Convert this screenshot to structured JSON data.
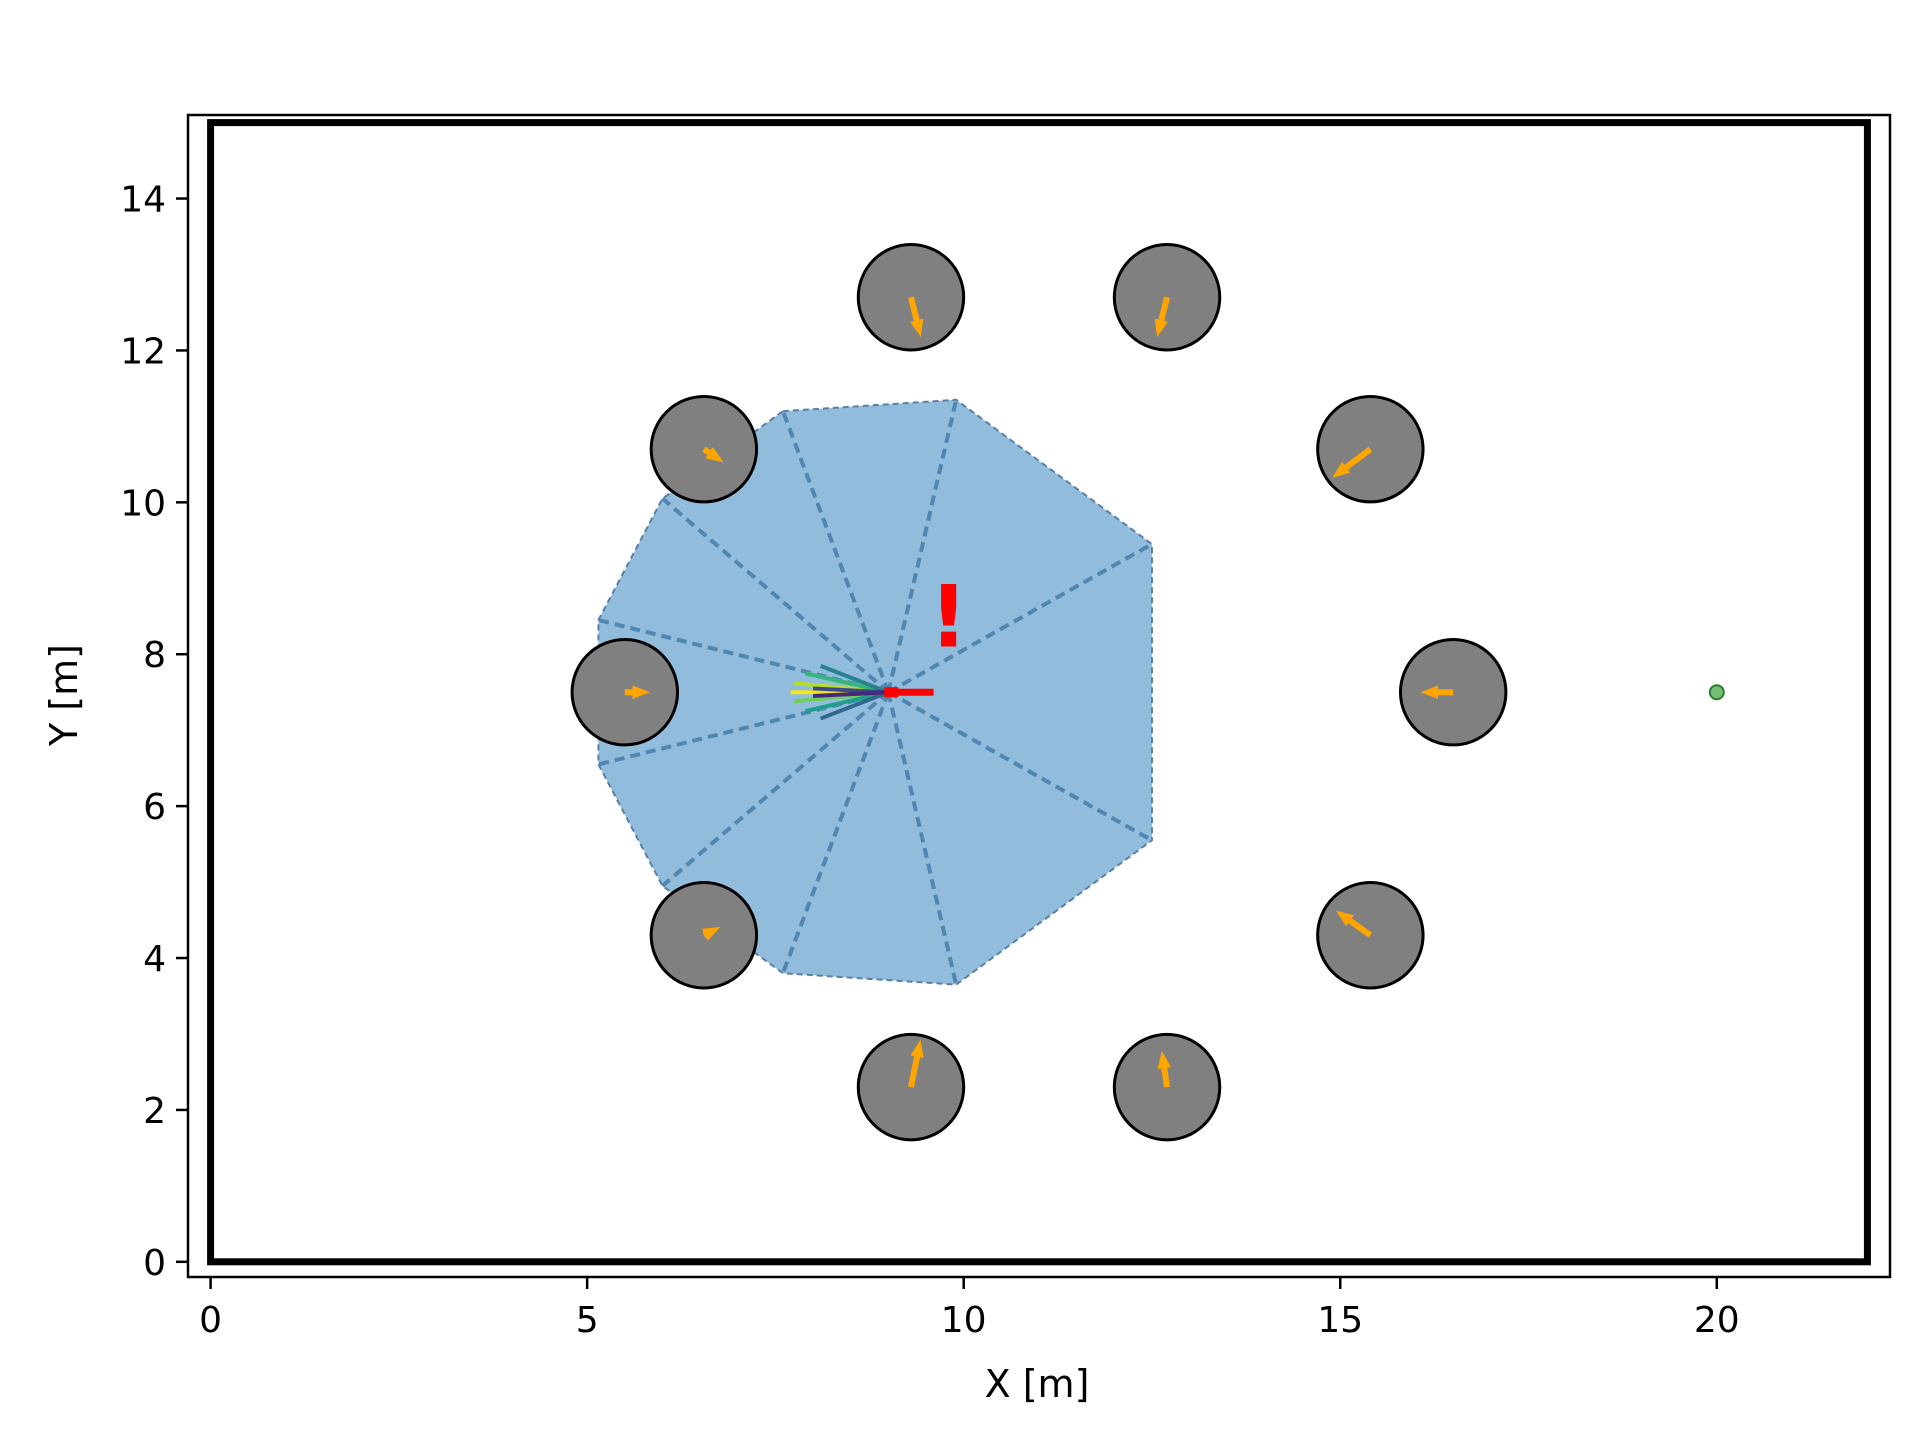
{
  "chart_data": {
    "type": "scatter",
    "title": "",
    "xlabel": "X [m]",
    "ylabel": "Y [m]",
    "xlim": [
      -0.3,
      22.3
    ],
    "ylim": [
      -0.2,
      15.1
    ],
    "xticks": [
      0,
      5,
      10,
      15,
      20
    ],
    "yticks": [
      0,
      2,
      4,
      6,
      8,
      10,
      12,
      14
    ],
    "grid": false,
    "room_boundary": {
      "x_min": 0,
      "x_max": 22,
      "y_min": 0,
      "y_max": 15
    },
    "robot": {
      "x": 9.0,
      "y": 7.5,
      "heading_deg": 0
    },
    "goal": {
      "x": 20.0,
      "y": 7.5
    },
    "alert_marker": {
      "text": "!",
      "x": 9.8,
      "y": 8.1
    },
    "obstacles": [
      {
        "x": 9.3,
        "y": 12.7,
        "r": 0.7,
        "vx": 0.1,
        "vy": -0.4
      },
      {
        "x": 12.7,
        "y": 12.7,
        "r": 0.7,
        "vx": -0.1,
        "vy": -0.4
      },
      {
        "x": 6.55,
        "y": 10.7,
        "r": 0.7,
        "vx": 0.15,
        "vy": -0.1
      },
      {
        "x": 15.4,
        "y": 10.7,
        "r": 0.7,
        "vx": -0.4,
        "vy": -0.3
      },
      {
        "x": 5.5,
        "y": 7.5,
        "r": 0.7,
        "vx": 0.2,
        "vy": 0.0
      },
      {
        "x": 16.5,
        "y": 7.5,
        "r": 0.7,
        "vx": -0.3,
        "vy": 0.0
      },
      {
        "x": 6.55,
        "y": 4.3,
        "r": 0.7,
        "vx": 0.1,
        "vy": 0.05
      },
      {
        "x": 15.4,
        "y": 4.3,
        "r": 0.7,
        "vx": -0.35,
        "vy": 0.25
      },
      {
        "x": 9.3,
        "y": 2.3,
        "r": 0.7,
        "vx": 0.1,
        "vy": 0.5
      },
      {
        "x": 12.7,
        "y": 2.3,
        "r": 0.7,
        "vx": -0.05,
        "vy": 0.35
      }
    ],
    "lidar_polygon": [
      [
        7.6,
        11.2
      ],
      [
        9.9,
        11.35
      ],
      [
        12.5,
        9.45
      ],
      [
        12.5,
        5.55
      ],
      [
        9.9,
        3.65
      ],
      [
        7.6,
        3.8
      ],
      [
        6.0,
        4.95
      ],
      [
        5.15,
        6.55
      ],
      [
        5.15,
        8.45
      ],
      [
        6.0,
        10.05
      ]
    ],
    "velocity_samples": [
      {
        "dx": -1.3,
        "dy": 0.0,
        "color": "#f2e51c"
      },
      {
        "dx": -1.25,
        "dy": 0.12,
        "color": "#b5de2b"
      },
      {
        "dx": -1.25,
        "dy": -0.12,
        "color": "#6ece58"
      },
      {
        "dx": -1.1,
        "dy": 0.25,
        "color": "#35b779"
      },
      {
        "dx": -1.1,
        "dy": -0.25,
        "color": "#1f9e89"
      },
      {
        "dx": -0.9,
        "dy": 0.35,
        "color": "#26828e"
      },
      {
        "dx": -0.9,
        "dy": -0.35,
        "color": "#31688e"
      },
      {
        "dx": -1.0,
        "dy": 0.05,
        "color": "#3e4989"
      },
      {
        "dx": -1.0,
        "dy": -0.05,
        "color": "#482878"
      }
    ],
    "colors": {
      "lidar_fill": "#7fb0d6",
      "lidar_beam": "#3f78a8",
      "obstacle_fill": "#808080",
      "obstacle_velocity": "#ffa500",
      "robot": "#ff0000",
      "goal": "#4caf50"
    }
  }
}
